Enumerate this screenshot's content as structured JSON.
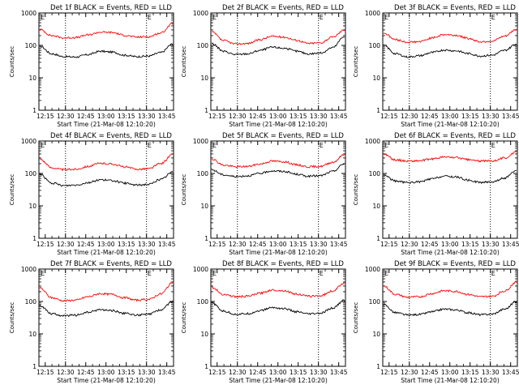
{
  "layout": {
    "rows": 3,
    "cols": 3
  },
  "colors": {
    "events": "#000000",
    "lld": "#ff0000",
    "axis": "#000000",
    "background": "#ffffff"
  },
  "chart_data": [
    {
      "type": "line",
      "title": "Det 1f BLACK = Events, RED = LLD",
      "xlabel": "Start Time (21-Mar-08 12:10:20)",
      "ylabel": "Counts/sec",
      "yscale": "log",
      "ylim": [
        1,
        1000
      ],
      "yticks": [
        "1",
        "10",
        "100",
        "1000"
      ],
      "xticks": [
        "12:15",
        "12:30",
        "12:45",
        "13:00",
        "13:15",
        "13:30",
        "13:45"
      ],
      "markers": [
        "12:30",
        "13:30"
      ],
      "marker_labels": [
        "E",
        "E"
      ],
      "grid": false,
      "series": [
        {
          "name": "Events",
          "color": "#000000",
          "values": [
            95,
            55,
            45,
            44,
            52,
            66,
            62,
            50,
            45,
            47,
            60,
            110
          ]
        },
        {
          "name": "LLD",
          "color": "#ff0000",
          "values": [
            310,
            200,
            170,
            175,
            210,
            255,
            250,
            205,
            180,
            185,
            240,
            470
          ]
        }
      ]
    },
    {
      "type": "line",
      "title": "Det 2f BLACK = Events, RED = LLD",
      "xlabel": "Start Time (21-Mar-08 12:10:20)",
      "ylabel": "Counts/sec",
      "yscale": "log",
      "ylim": [
        1,
        1000
      ],
      "yticks": [
        "1",
        "10",
        "100",
        "1000"
      ],
      "xticks": [
        "12:15",
        "12:30",
        "12:45",
        "13:00",
        "13:15",
        "13:30",
        "13:45"
      ],
      "markers": [
        "12:30",
        "13:30"
      ],
      "marker_labels": [
        "E",
        "E"
      ],
      "grid": false,
      "series": [
        {
          "name": "Events",
          "color": "#000000",
          "values": [
            115,
            65,
            52,
            55,
            70,
            88,
            82,
            66,
            55,
            58,
            85,
            190
          ]
        },
        {
          "name": "LLD",
          "color": "#ff0000",
          "values": [
            260,
            140,
            110,
            115,
            150,
            190,
            180,
            145,
            115,
            120,
            180,
            300
          ]
        }
      ]
    },
    {
      "type": "line",
      "title": "Det 3f BLACK = Events, RED = LLD",
      "xlabel": "Start Time (21-Mar-08 12:10:20)",
      "ylabel": "Counts/sec",
      "yscale": "log",
      "ylim": [
        1,
        1000
      ],
      "yticks": [
        "1",
        "10",
        "100",
        "1000"
      ],
      "xticks": [
        "12:15",
        "12:30",
        "12:45",
        "13:00",
        "13:15",
        "13:30",
        "13:45"
      ],
      "markers": [
        "12:30",
        "13:30"
      ],
      "marker_labels": [
        "E",
        "E"
      ],
      "grid": false,
      "series": [
        {
          "name": "Events",
          "color": "#000000",
          "values": [
            100,
            55,
            44,
            48,
            60,
            72,
            68,
            56,
            47,
            50,
            70,
            110
          ]
        },
        {
          "name": "LLD",
          "color": "#ff0000",
          "values": [
            240,
            150,
            125,
            130,
            170,
            215,
            205,
            165,
            130,
            135,
            190,
            310
          ]
        }
      ]
    },
    {
      "type": "line",
      "title": "Det 4f BLACK = Events, RED = LLD",
      "xlabel": "Start Time (21-Mar-08 12:10:20)",
      "ylabel": "Counts/sec",
      "yscale": "log",
      "ylim": [
        1,
        1000
      ],
      "yticks": [
        "1",
        "10",
        "100",
        "1000"
      ],
      "xticks": [
        "12:15",
        "12:30",
        "12:45",
        "13:00",
        "13:15",
        "13:30",
        "13:45"
      ],
      "markers": [
        "12:30",
        "13:30"
      ],
      "marker_labels": [
        "E",
        "E"
      ],
      "grid": false,
      "series": [
        {
          "name": "Events",
          "color": "#000000",
          "values": [
            95,
            50,
            42,
            44,
            52,
            64,
            60,
            50,
            44,
            46,
            65,
            110
          ]
        },
        {
          "name": "LLD",
          "color": "#ff0000",
          "values": [
            280,
            150,
            130,
            135,
            165,
            205,
            195,
            160,
            135,
            140,
            200,
            380
          ]
        }
      ]
    },
    {
      "type": "line",
      "title": "Det 5f BLACK = Events, RED = LLD",
      "xlabel": "Start Time (21-Mar-08 12:10:20)",
      "ylabel": "Counts/sec",
      "yscale": "log",
      "ylim": [
        1,
        1000
      ],
      "yticks": [
        "1",
        "10",
        "100",
        "1000"
      ],
      "xticks": [
        "12:15",
        "12:30",
        "12:45",
        "13:00",
        "13:15",
        "13:30",
        "13:45"
      ],
      "markers": [
        "12:30",
        "13:30"
      ],
      "marker_labels": [
        "E",
        "E"
      ],
      "grid": false,
      "series": [
        {
          "name": "Events",
          "color": "#000000",
          "values": [
            130,
            90,
            80,
            85,
            100,
            120,
            115,
            95,
            82,
            85,
            115,
            200
          ]
        },
        {
          "name": "LLD",
          "color": "#ff0000",
          "values": [
            280,
            180,
            160,
            165,
            195,
            240,
            230,
            185,
            160,
            165,
            220,
            380
          ]
        }
      ]
    },
    {
      "type": "line",
      "title": "Det 6f BLACK = Events, RED = LLD",
      "xlabel": "Start Time (21-Mar-08 12:10:20)",
      "ylabel": "Counts/sec",
      "yscale": "log",
      "ylim": [
        1,
        1000
      ],
      "yticks": [
        "1",
        "10",
        "100",
        "1000"
      ],
      "xticks": [
        "12:15",
        "12:30",
        "12:45",
        "13:00",
        "13:15",
        "13:30",
        "13:45"
      ],
      "markers": [
        "12:30",
        "13:30"
      ],
      "marker_labels": [
        "E",
        "E"
      ],
      "grid": false,
      "series": [
        {
          "name": "Events",
          "color": "#000000",
          "values": [
            90,
            58,
            52,
            55,
            68,
            82,
            78,
            62,
            53,
            55,
            72,
            120
          ]
        },
        {
          "name": "LLD",
          "color": "#ff0000",
          "values": [
            400,
            260,
            240,
            245,
            280,
            320,
            310,
            265,
            240,
            245,
            300,
            450
          ]
        }
      ]
    },
    {
      "type": "line",
      "title": "Det 7f BLACK = Events, RED = LLD",
      "xlabel": "Start Time (21-Mar-08 12:10:20)",
      "ylabel": "Counts/sec",
      "yscale": "log",
      "ylim": [
        1,
        1000
      ],
      "yticks": [
        "1",
        "10",
        "100",
        "1000"
      ],
      "xticks": [
        "12:15",
        "12:30",
        "12:45",
        "13:00",
        "13:15",
        "13:30",
        "13:45"
      ],
      "markers": [
        "12:30",
        "13:30"
      ],
      "marker_labels": [
        "E",
        "E"
      ],
      "grid": false,
      "series": [
        {
          "name": "Events",
          "color": "#000000",
          "values": [
            75,
            42,
            36,
            38,
            46,
            56,
            52,
            43,
            38,
            40,
            55,
            100
          ]
        },
        {
          "name": "LLD",
          "color": "#ff0000",
          "values": [
            260,
            130,
            105,
            110,
            140,
            175,
            165,
            130,
            110,
            115,
            170,
            380
          ]
        }
      ]
    },
    {
      "type": "line",
      "title": "Det 8f BLACK = Events, RED = LLD",
      "xlabel": "Start Time (21-Mar-08 12:10:20)",
      "ylabel": "Counts/sec",
      "yscale": "log",
      "ylim": [
        1,
        1000
      ],
      "yticks": [
        "1",
        "10",
        "100",
        "1000"
      ],
      "xticks": [
        "12:15",
        "12:30",
        "12:45",
        "13:00",
        "13:15",
        "13:30",
        "13:45"
      ],
      "markers": [
        "12:30",
        "13:30"
      ],
      "marker_labels": [
        "E",
        "E"
      ],
      "grid": false,
      "series": [
        {
          "name": "Events",
          "color": "#000000",
          "values": [
            90,
            50,
            40,
            42,
            52,
            65,
            60,
            48,
            41,
            43,
            62,
            110
          ]
        },
        {
          "name": "LLD",
          "color": "#ff0000",
          "values": [
            270,
            165,
            140,
            145,
            180,
            225,
            215,
            170,
            145,
            150,
            210,
            380
          ]
        }
      ]
    },
    {
      "type": "line",
      "title": "Det 9f BLACK = Events, RED = LLD",
      "xlabel": "Start Time (21-Mar-08 12:10:20)",
      "ylabel": "Counts/sec",
      "yscale": "log",
      "ylim": [
        1,
        1000
      ],
      "yticks": [
        "1",
        "10",
        "100",
        "1000"
      ],
      "xticks": [
        "12:15",
        "12:30",
        "12:45",
        "13:00",
        "13:15",
        "13:30",
        "13:45"
      ],
      "markers": [
        "12:30",
        "13:30"
      ],
      "marker_labels": [
        "E",
        "E"
      ],
      "grid": false,
      "series": [
        {
          "name": "Events",
          "color": "#000000",
          "values": [
            80,
            45,
            38,
            40,
            48,
            58,
            55,
            45,
            39,
            41,
            58,
            100
          ]
        },
        {
          "name": "LLD",
          "color": "#ff0000",
          "values": [
            300,
            165,
            135,
            140,
            175,
            215,
            205,
            165,
            140,
            145,
            210,
            400
          ]
        }
      ]
    }
  ]
}
